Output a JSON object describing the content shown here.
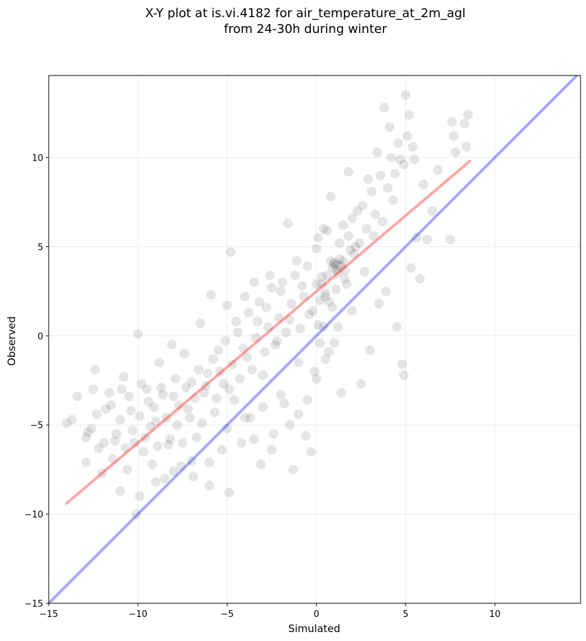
{
  "chart_data": {
    "type": "scatter",
    "title_lines": [
      "X-Y plot at is.vi.4182 for air_temperature_at_2m_agl",
      "from 24-30h during winter"
    ],
    "xlabel": "Simulated",
    "ylabel": "Observed",
    "xlim": [
      -15,
      14.8
    ],
    "ylim": [
      -15,
      14.6
    ],
    "xticks": [
      -15,
      -10,
      -5,
      0,
      5,
      10
    ],
    "yticks": [
      -15,
      -10,
      -5,
      0,
      5,
      10
    ],
    "xtick_labels": [
      "−15",
      "−10",
      "−5",
      "0",
      "5",
      "10"
    ],
    "ytick_labels": [
      "−15",
      "−10",
      "−5",
      "0",
      "5",
      "10"
    ],
    "grid": true,
    "point_color": "#000000",
    "series": [
      {
        "values": [
          [
            -14.0,
            -4.9
          ],
          [
            -13.7,
            -4.7
          ],
          [
            -13.4,
            -3.4
          ],
          [
            -12.9,
            -5.7
          ],
          [
            -12.9,
            -7.1
          ],
          [
            -12.6,
            -5.2
          ],
          [
            -12.5,
            -3.0
          ],
          [
            -12.4,
            -1.9
          ],
          [
            -12.2,
            -6.3
          ],
          [
            -12.0,
            -7.7
          ],
          [
            -11.8,
            -4.1
          ],
          [
            -11.6,
            -3.2
          ],
          [
            -11.4,
            -6.9
          ],
          [
            -11.2,
            -5.5
          ],
          [
            -11.0,
            -8.7
          ],
          [
            -10.9,
            -3.0
          ],
          [
            -10.8,
            -2.3
          ],
          [
            -10.6,
            -7.5
          ],
          [
            -10.4,
            -4.2
          ],
          [
            -10.2,
            -6.0
          ],
          [
            -10.1,
            -10.0
          ],
          [
            -10.0,
            0.1
          ],
          [
            -9.9,
            -9.0
          ],
          [
            -9.8,
            -2.7
          ],
          [
            -9.6,
            -5.7
          ],
          [
            -9.4,
            -3.7
          ],
          [
            -9.2,
            -7.2
          ],
          [
            -9.0,
            -4.8
          ],
          [
            -8.8,
            -1.5
          ],
          [
            -8.7,
            -2.9
          ],
          [
            -8.5,
            -8.0
          ],
          [
            -8.3,
            -6.1
          ],
          [
            -8.1,
            -0.5
          ],
          [
            -8.0,
            -3.4
          ],
          [
            -7.8,
            -5.0
          ],
          [
            -7.6,
            -7.3
          ],
          [
            -7.4,
            -1.0
          ],
          [
            -7.2,
            -4.1
          ],
          [
            -7.0,
            -2.6
          ],
          [
            -6.9,
            -7.9
          ],
          [
            -6.7,
            -5.7
          ],
          [
            -6.5,
            0.7
          ],
          [
            -6.3,
            -3.2
          ],
          [
            -6.1,
            -2.1
          ],
          [
            -6.0,
            -8.4
          ],
          [
            -5.9,
            2.3
          ],
          [
            -5.7,
            -4.3
          ],
          [
            -5.5,
            -0.8
          ],
          [
            -5.3,
            -6.4
          ],
          [
            -5.2,
            -2.7
          ],
          [
            -5.0,
            1.7
          ],
          [
            -4.9,
            -8.8
          ],
          [
            -4.8,
            4.7
          ],
          [
            -4.6,
            -3.6
          ],
          [
            -4.4,
            0.2
          ],
          [
            -4.2,
            -6.0
          ],
          [
            -4.0,
            2.2
          ],
          [
            -3.9,
            -1.2
          ],
          [
            -3.7,
            -4.6
          ],
          [
            -3.5,
            3.0
          ],
          [
            -3.3,
            0.8
          ],
          [
            -3.1,
            -7.2
          ],
          [
            -3.0,
            -2.2
          ],
          [
            -2.8,
            1.6
          ],
          [
            -2.6,
            3.4
          ],
          [
            -2.4,
            -5.5
          ],
          [
            -2.2,
            -0.3
          ],
          [
            -2.0,
            2.5
          ],
          [
            -1.8,
            -3.8
          ],
          [
            -1.6,
            6.3
          ],
          [
            -1.5,
            0.9
          ],
          [
            -1.3,
            -7.5
          ],
          [
            -1.1,
            4.2
          ],
          [
            -1.0,
            -1.5
          ],
          [
            -0.8,
            2.8
          ],
          [
            -0.6,
            -5.6
          ],
          [
            -0.4,
            1.2
          ],
          [
            -0.3,
            -6.5
          ],
          [
            -0.1,
            -2.0
          ],
          [
            0.0,
            4.9
          ],
          [
            0.2,
            -0.4
          ],
          [
            0.4,
            6.0
          ],
          [
            0.5,
            2.2
          ],
          [
            0.7,
            -0.9
          ],
          [
            0.8,
            7.8
          ],
          [
            1.0,
            4.0
          ],
          [
            1.1,
            2.6
          ],
          [
            1.2,
            0.5
          ],
          [
            1.3,
            5.2
          ],
          [
            1.4,
            -3.2
          ],
          [
            1.6,
            3.2
          ],
          [
            1.8,
            9.2
          ],
          [
            2.0,
            1.4
          ],
          [
            2.1,
            4.6
          ],
          [
            2.3,
            7.0
          ],
          [
            2.5,
            -2.7
          ],
          [
            2.7,
            3.6
          ],
          [
            2.9,
            8.8
          ],
          [
            3.0,
            -0.8
          ],
          [
            3.2,
            5.6
          ],
          [
            3.4,
            10.3
          ],
          [
            3.5,
            1.8
          ],
          [
            3.7,
            6.4
          ],
          [
            3.8,
            12.8
          ],
          [
            3.9,
            2.5
          ],
          [
            4.1,
            11.7
          ],
          [
            4.3,
            7.6
          ],
          [
            4.5,
            0.5
          ],
          [
            4.7,
            9.9
          ],
          [
            4.8,
            -1.6
          ],
          [
            4.9,
            -2.2
          ],
          [
            5.0,
            13.5
          ],
          [
            5.1,
            11.2
          ],
          [
            5.3,
            3.8
          ],
          [
            5.4,
            10.6
          ],
          [
            5.6,
            5.5
          ],
          [
            5.8,
            3.2
          ],
          [
            6.0,
            8.5
          ],
          [
            6.2,
            5.4
          ],
          [
            6.5,
            7.0
          ],
          [
            6.8,
            9.3
          ],
          [
            7.5,
            5.4
          ],
          [
            7.6,
            12.0
          ],
          [
            7.7,
            11.2
          ],
          [
            7.8,
            10.3
          ],
          [
            8.3,
            11.9
          ],
          [
            8.4,
            10.6
          ],
          [
            8.5,
            12.4
          ]
        ]
      },
      {
        "values": [
          [
            1.2,
            4.0
          ],
          [
            1.0,
            4.1
          ],
          [
            1.4,
            3.9
          ],
          [
            1.1,
            3.7
          ],
          [
            1.3,
            4.3
          ],
          [
            0.8,
            4.2
          ],
          [
            1.5,
            4.2
          ],
          [
            0.9,
            3.8
          ],
          [
            1.2,
            3.5
          ],
          [
            1.6,
            3.7
          ],
          [
            0.6,
            3.4
          ],
          [
            0.3,
            2.9
          ],
          [
            0.5,
            2.4
          ],
          [
            0.2,
            2.0
          ],
          [
            1.9,
            4.8
          ],
          [
            2.2,
            5.0
          ],
          [
            1.7,
            2.9
          ],
          [
            0.4,
            0.5
          ],
          [
            0.1,
            0.6
          ],
          [
            0.9,
            1.6
          ]
        ]
      },
      {
        "values": [
          [
            -12.8,
            -5.4
          ],
          [
            -12.3,
            -4.4
          ],
          [
            -11.9,
            -6.0
          ],
          [
            -11.5,
            -3.9
          ],
          [
            -11.3,
            -5.9
          ],
          [
            -11.0,
            -4.7
          ],
          [
            -10.7,
            -6.3
          ],
          [
            -10.5,
            -3.4
          ],
          [
            -10.3,
            -5.3
          ],
          [
            -9.9,
            -4.5
          ],
          [
            -9.7,
            -6.5
          ],
          [
            -9.5,
            -3.0
          ],
          [
            -9.3,
            -5.1
          ],
          [
            -9.1,
            -4.0
          ],
          [
            -8.9,
            -6.2
          ],
          [
            -8.6,
            -3.3
          ],
          [
            -8.4,
            -4.6
          ],
          [
            -8.2,
            -5.8
          ],
          [
            -7.9,
            -2.4
          ],
          [
            -7.7,
            -3.9
          ],
          [
            -7.5,
            -6.0
          ],
          [
            -7.3,
            -2.9
          ],
          [
            -7.1,
            -4.6
          ],
          [
            -6.8,
            -3.5
          ],
          [
            -6.6,
            -1.9
          ],
          [
            -6.4,
            -4.9
          ],
          [
            -6.2,
            -2.8
          ],
          [
            -5.8,
            -1.3
          ],
          [
            -5.6,
            -3.5
          ],
          [
            -5.4,
            -2.0
          ],
          [
            -5.1,
            -0.3
          ],
          [
            -4.9,
            -3.0
          ],
          [
            -4.7,
            -1.6
          ],
          [
            -4.5,
            0.8
          ],
          [
            -4.3,
            -2.4
          ],
          [
            -4.1,
            -0.7
          ],
          [
            -3.8,
            1.3
          ],
          [
            -3.6,
            -1.9
          ],
          [
            -3.4,
            -0.1
          ],
          [
            -3.2,
            1.9
          ],
          [
            -2.9,
            -0.9
          ],
          [
            -2.7,
            0.5
          ],
          [
            -2.5,
            2.7
          ],
          [
            -2.3,
            -0.5
          ],
          [
            -2.1,
            1.0
          ],
          [
            -1.9,
            3.0
          ],
          [
            -1.7,
            0.2
          ],
          [
            -1.4,
            1.8
          ],
          [
            -1.2,
            3.4
          ],
          [
            -0.9,
            0.4
          ],
          [
            -0.7,
            2.2
          ],
          [
            -0.5,
            3.9
          ],
          [
            -0.2,
            1.4
          ],
          [
            0.0,
            2.9
          ],
          [
            0.1,
            5.5
          ],
          [
            0.3,
            3.3
          ],
          [
            0.6,
            5.9
          ],
          [
            0.7,
            1.9
          ],
          [
            1.5,
            6.2
          ],
          [
            1.8,
            5.6
          ],
          [
            2.0,
            6.6
          ],
          [
            2.4,
            5.2
          ],
          [
            2.6,
            7.3
          ],
          [
            2.8,
            6.0
          ],
          [
            3.1,
            8.1
          ],
          [
            3.3,
            6.8
          ],
          [
            3.6,
            9.0
          ],
          [
            4.0,
            8.3
          ],
          [
            4.2,
            10.0
          ],
          [
            4.4,
            9.1
          ],
          [
            4.6,
            10.8
          ],
          [
            4.9,
            9.6
          ],
          [
            5.2,
            12.4
          ],
          [
            5.5,
            9.9
          ],
          [
            -6.0,
            -7.1
          ],
          [
            -5.0,
            -5.2
          ],
          [
            -4.0,
            -4.6
          ],
          [
            -3.0,
            -4.0
          ],
          [
            -2.0,
            -3.3
          ],
          [
            -1.0,
            -4.4
          ],
          [
            -0.5,
            -3.6
          ],
          [
            0.0,
            -2.4
          ],
          [
            -8.0,
            -7.6
          ],
          [
            -9.0,
            -8.2
          ],
          [
            -7.0,
            -7.0
          ],
          [
            -3.5,
            -5.8
          ],
          [
            -2.5,
            -6.4
          ],
          [
            -1.5,
            -5.0
          ],
          [
            0.5,
            -1.3
          ],
          [
            1.0,
            -0.4
          ]
        ]
      }
    ],
    "fit_line": {
      "color": "#ff0000",
      "x": [
        -14.0,
        8.6
      ],
      "y": [
        -9.4,
        9.8
      ]
    },
    "identity_line": {
      "color": "#0000ff",
      "x": [
        -15,
        14.8
      ],
      "y": [
        -15,
        14.8
      ]
    }
  }
}
